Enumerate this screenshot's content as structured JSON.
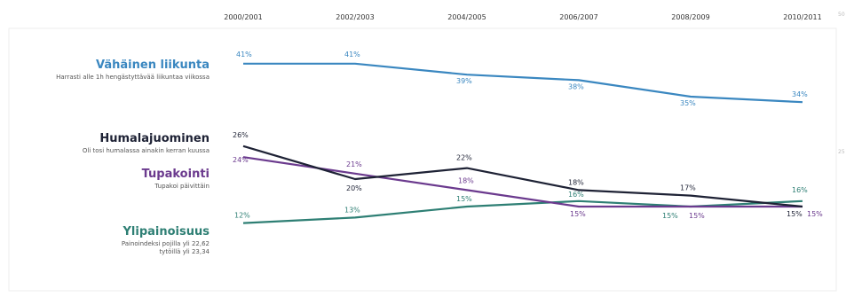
{
  "chart_data": {
    "type": "line",
    "x": [
      "2000/2001",
      "2002/2003",
      "2004/2005",
      "2006/2007",
      "2008/2009",
      "2010/2011"
    ],
    "ylim": [
      0,
      50
    ],
    "y_edge_labels": [
      "50",
      "25"
    ],
    "grid": false,
    "legend": "left",
    "series": [
      {
        "name": "Vähäinen liikunta",
        "subtitle": [
          "Harrasti alle 1h hengästyttävää liikuntaa viikossa"
        ],
        "color": "#3a87c0",
        "values": [
          41,
          41,
          39,
          38,
          35,
          34
        ],
        "value_labels": [
          "41%",
          "41%",
          "39%",
          "38%",
          "35%",
          "34%"
        ]
      },
      {
        "name": "Humalajuominen",
        "subtitle": [
          "Oli tosi humalassa ainakin kerran kuussa"
        ],
        "color": "#1e2235",
        "values": [
          26,
          20,
          22,
          18,
          17,
          15
        ],
        "value_labels": [
          "26%",
          "20%",
          "22%",
          "18%",
          "17%",
          "15%"
        ]
      },
      {
        "name": "Tupakointi",
        "subtitle": [
          "Tupakoi päivittäin"
        ],
        "color": "#6b3a8e",
        "values": [
          24,
          21,
          18,
          15,
          15,
          15
        ],
        "value_labels": [
          "24%",
          "21%",
          "18%",
          "15%",
          "15%",
          "15%"
        ]
      },
      {
        "name": "Ylipainoisuus",
        "subtitle": [
          "Painoindeksi pojilla yli 22,62",
          "tytöillä yli 23,34"
        ],
        "color": "#2e7f74",
        "values": [
          12,
          13,
          15,
          16,
          15,
          16
        ],
        "value_labels": [
          "12%",
          "13%",
          "15%",
          "16%",
          "15%",
          "16%"
        ]
      }
    ]
  }
}
